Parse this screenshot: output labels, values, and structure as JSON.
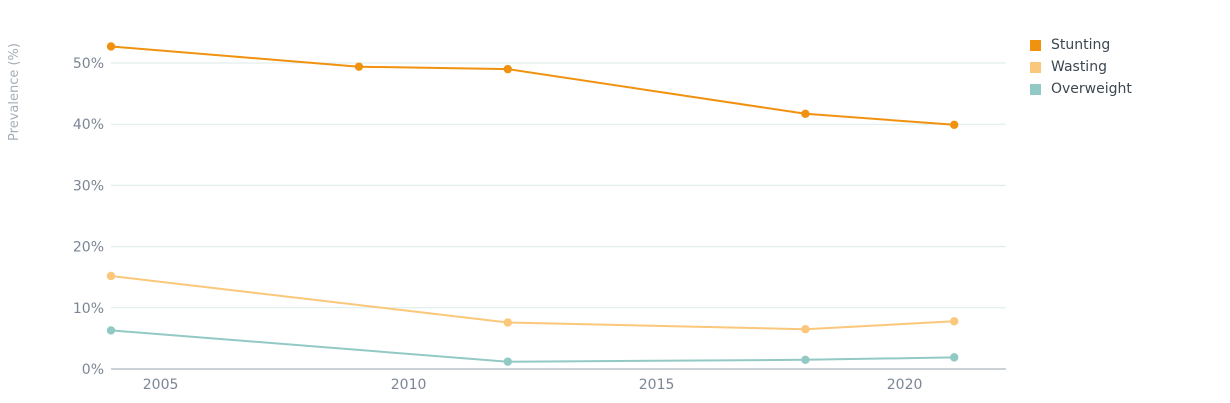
{
  "chart_data": {
    "type": "line",
    "ylabel": "Prevalence (%)",
    "xlabel": "",
    "xlim": [
      2004,
      2025
    ],
    "ylim": [
      0,
      50
    ],
    "x_ticks": [
      2005,
      2010,
      2015,
      2020
    ],
    "x_tick_labels": [
      "2005",
      "2010",
      "2015",
      "2020"
    ],
    "y_ticks": [
      0,
      10,
      20,
      30,
      40,
      50
    ],
    "y_tick_labels": [
      "0%",
      "10%",
      "20%",
      "30%",
      "40%",
      "50%"
    ],
    "grid": true,
    "legend_position": "right",
    "series": [
      {
        "name": "Stunting",
        "color": "#f0920f",
        "x": [
          2004,
          2009,
          2012,
          2018,
          2021
        ],
        "y": [
          52.7,
          49.4,
          49.0,
          41.7,
          39.9
        ]
      },
      {
        "name": "Wasting",
        "color": "#fbc77a",
        "x": [
          2004,
          2012,
          2018,
          2021
        ],
        "y": [
          15.2,
          7.6,
          6.5,
          7.8
        ]
      },
      {
        "name": "Overweight",
        "color": "#93c9c5",
        "x": [
          2004,
          2012,
          2018,
          2021
        ],
        "y": [
          6.3,
          1.2,
          1.5,
          1.9
        ]
      }
    ]
  }
}
